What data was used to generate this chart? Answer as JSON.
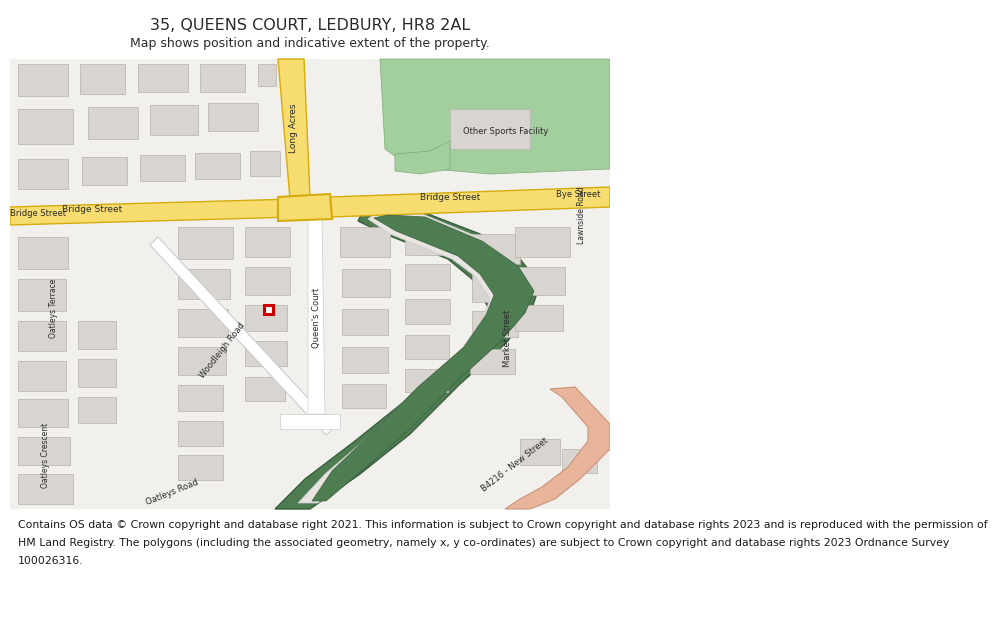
{
  "title": "35, QUEENS COURT, LEDBURY, HR8 2AL",
  "subtitle": "Map shows position and indicative extent of the property.",
  "footer_lines": [
    "Contains OS data © Crown copyright and database right 2021. This information is subject to Crown copyright and database rights 2023 and is reproduced with the permission of",
    "HM Land Registry. The polygons (including the associated geometry, namely x, y co-ordinates) are subject to Crown copyright and database rights 2023 Ordnance Survey",
    "100026316."
  ],
  "bg_color": "#f2f0ed",
  "road_yellow": "#f7dc6f",
  "road_yellow_border": "#d4ac0d",
  "road_white": "#ffffff",
  "road_white_border": "#cccccc",
  "building_color": "#d8d5d0",
  "building_stroke": "#b5b2ad",
  "green_sports": "#a3cf9f",
  "green_sports_border": "#7aab76",
  "green_dark": "#4e7d52",
  "green_dark_border": "#3a5e3d",
  "salmon": "#e8b49a",
  "salmon_border": "#c8947a",
  "marker_red": "#cc0000",
  "text_dark": "#2a2a2a",
  "title_fontsize": 11.5,
  "subtitle_fontsize": 9.0,
  "label_fontsize": 6.5,
  "footer_fontsize": 7.8
}
